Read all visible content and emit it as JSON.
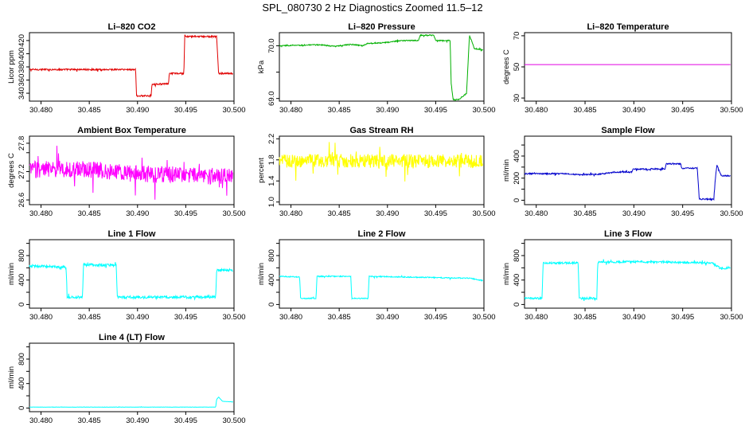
{
  "figure_title": "SPL_080730  2 Hz Diagnostics Zoomed 11.5–12",
  "chart_data": [
    {
      "type": "line",
      "title": "Li–820 CO2",
      "ylabel": "Licor ppm",
      "color": "#e00000",
      "xlim": [
        30.4788,
        30.5
      ],
      "ylim": [
        328,
        432
      ],
      "xticks": [
        30.48,
        30.485,
        30.49,
        30.495,
        30.5
      ],
      "xtick_labels": [
        "30.480",
        "30.485",
        "30.490",
        "30.495",
        "30.500"
      ],
      "yticks": [
        340,
        360,
        380,
        400,
        420
      ],
      "ytick_labels": [
        "340",
        "360",
        "380",
        "400",
        "420"
      ],
      "noise": 1.2,
      "x": [
        30.4788,
        30.4898,
        30.4899,
        30.4914,
        30.4915,
        30.4932,
        30.4933,
        30.4948,
        30.4949,
        30.4982,
        30.4984,
        30.4999
      ],
      "y": [
        376,
        376,
        336,
        336,
        354,
        354,
        370,
        370,
        426,
        426,
        370,
        370
      ]
    },
    {
      "type": "line",
      "title": "Li–820 Pressure",
      "ylabel": "kPa",
      "color": "#00b000",
      "xlim": [
        30.4788,
        30.5
      ],
      "ylim": [
        68.95,
        70.25
      ],
      "xticks": [
        30.48,
        30.485,
        30.49,
        30.495,
        30.5
      ],
      "xtick_labels": [
        "30.480",
        "30.485",
        "30.490",
        "30.495",
        "30.500"
      ],
      "yticks": [
        69.0,
        69.5,
        70.0
      ],
      "ytick_labels": [
        "69.0",
        "",
        "70.0"
      ],
      "noise": 0.01,
      "x": [
        30.4788,
        30.483,
        30.4846,
        30.4862,
        30.4874,
        30.488,
        30.4898,
        30.4914,
        30.4932,
        30.4934,
        30.4942,
        30.4948,
        30.495,
        30.4965,
        30.4966,
        30.4968,
        30.4974,
        30.4982,
        30.4985,
        30.499,
        30.4999
      ],
      "y": [
        70.0,
        70.02,
        69.99,
        70.03,
        70.0,
        70.05,
        70.06,
        70.1,
        70.1,
        70.2,
        70.2,
        70.2,
        70.1,
        70.1,
        69.3,
        68.98,
        68.98,
        69.1,
        70.2,
        69.95,
        69.92
      ]
    },
    {
      "type": "line",
      "title": "Li–820 Temperature",
      "ylabel": "degrees C",
      "color": "#e000e0",
      "xlim": [
        30.4788,
        30.5
      ],
      "ylim": [
        28,
        72
      ],
      "xticks": [
        30.48,
        30.485,
        30.49,
        30.495,
        30.5
      ],
      "xtick_labels": [
        "30.480",
        "30.485",
        "30.490",
        "30.495",
        "30.500"
      ],
      "yticks": [
        30,
        50,
        70
      ],
      "ytick_labels": [
        "30",
        "50",
        "70"
      ],
      "noise": 0,
      "x": [
        30.4788,
        30.4999
      ],
      "y": [
        51.5,
        51.5
      ]
    },
    {
      "type": "line",
      "title": "Ambient Box Temperature",
      "ylabel": "degrees C",
      "color": "#ff00ff",
      "xlim": [
        30.4788,
        30.5
      ],
      "ylim": [
        26.5,
        27.95
      ],
      "xticks": [
        30.48,
        30.485,
        30.49,
        30.495,
        30.5
      ],
      "xtick_labels": [
        "30.480",
        "30.485",
        "30.490",
        "30.495",
        "30.500"
      ],
      "yticks": [
        26.6,
        27.0,
        27.2,
        27.6,
        27.8
      ],
      "ytick_labels": [
        "26.6",
        "",
        "27.2",
        "",
        "27.8"
      ],
      "noise": 0.18,
      "x": [
        30.4788,
        30.485,
        30.49,
        30.4999
      ],
      "y": [
        27.25,
        27.25,
        27.15,
        27.1
      ]
    },
    {
      "type": "line",
      "title": "Gas Stream RH",
      "ylabel": "percent",
      "color": "#ffff00",
      "xlim": [
        30.4788,
        30.5
      ],
      "ylim": [
        0.95,
        2.25
      ],
      "xticks": [
        30.48,
        30.485,
        30.49,
        30.495,
        30.5
      ],
      "xtick_labels": [
        "30.480",
        "30.485",
        "30.490",
        "30.495",
        "30.500"
      ],
      "yticks": [
        1.0,
        1.4,
        1.8,
        2.2
      ],
      "ytick_labels": [
        "1.0",
        "1.4",
        "1.8",
        "2.2"
      ],
      "noise": 0.13,
      "x": [
        30.4788,
        30.4999
      ],
      "y": [
        1.78,
        1.78
      ]
    },
    {
      "type": "line",
      "title": "Sample Flow",
      "ylabel": "ml/min",
      "color": "#0000cc",
      "xlim": [
        30.4788,
        30.5
      ],
      "ylim": [
        -40,
        580
      ],
      "xticks": [
        30.48,
        30.485,
        30.49,
        30.495,
        30.5
      ],
      "xtick_labels": [
        "30.480",
        "30.485",
        "30.490",
        "30.495",
        "30.500"
      ],
      "yticks": [
        0,
        100,
        200,
        300,
        400,
        500
      ],
      "ytick_labels": [
        "0",
        "",
        "200",
        "",
        "400",
        ""
      ],
      "noise": 6,
      "x": [
        30.4788,
        30.483,
        30.4846,
        30.4862,
        30.4874,
        30.488,
        30.4898,
        30.4899,
        30.4932,
        30.4933,
        30.4948,
        30.4949,
        30.4965,
        30.4967,
        30.4982,
        30.4983,
        30.4985,
        30.4988,
        30.499,
        30.4999
      ],
      "y": [
        240,
        240,
        230,
        235,
        245,
        255,
        255,
        280,
        285,
        330,
        330,
        290,
        290,
        10,
        10,
        150,
        320,
        250,
        220,
        220
      ]
    },
    {
      "type": "line",
      "title": "Line 1 Flow",
      "ylabel": "ml/min",
      "color": "#00ffff",
      "xlim": [
        30.4788,
        30.5
      ],
      "ylim": [
        -60,
        1060
      ],
      "xticks": [
        30.48,
        30.485,
        30.49,
        30.495,
        30.5
      ],
      "xtick_labels": [
        "30.480",
        "30.485",
        "30.490",
        "30.495",
        "30.500"
      ],
      "yticks": [
        0,
        200,
        400,
        600,
        800,
        1000
      ],
      "ytick_labels": [
        "0",
        "",
        "400",
        "",
        "800",
        ""
      ],
      "noise": 22,
      "x": [
        30.4788,
        30.4826,
        30.4827,
        30.4843,
        30.4844,
        30.4878,
        30.4879,
        30.4981,
        30.4982,
        30.4999
      ],
      "y": [
        630,
        610,
        120,
        120,
        650,
        640,
        120,
        120,
        560,
        560
      ]
    },
    {
      "type": "line",
      "title": "Line 2 Flow",
      "ylabel": "ml/min",
      "color": "#00ffff",
      "xlim": [
        30.4788,
        30.5
      ],
      "ylim": [
        -60,
        1060
      ],
      "xticks": [
        30.48,
        30.485,
        30.49,
        30.495,
        30.5
      ],
      "xtick_labels": [
        "30.480",
        "30.485",
        "30.490",
        "30.495",
        "30.500"
      ],
      "yticks": [
        0,
        200,
        400,
        600,
        800,
        1000
      ],
      "ytick_labels": [
        "0",
        "",
        "400",
        "",
        "800",
        ""
      ],
      "noise": 8,
      "x": [
        30.4788,
        30.4809,
        30.481,
        30.4826,
        30.4827,
        30.4862,
        30.4863,
        30.488,
        30.4881,
        30.4985,
        30.4999
      ],
      "y": [
        460,
        450,
        100,
        100,
        460,
        460,
        100,
        100,
        460,
        430,
        390
      ]
    },
    {
      "type": "line",
      "title": "Line 3 Flow",
      "ylabel": "ml/min",
      "color": "#00ffff",
      "xlim": [
        30.4788,
        30.5
      ],
      "ylim": [
        -60,
        1060
      ],
      "xticks": [
        30.48,
        30.485,
        30.49,
        30.495,
        30.5
      ],
      "xtick_labels": [
        "30.480",
        "30.485",
        "30.490",
        "30.495",
        "30.500"
      ],
      "yticks": [
        0,
        200,
        400,
        600,
        800,
        1000
      ],
      "ytick_labels": [
        "0",
        "",
        "400",
        "",
        "800",
        ""
      ],
      "noise": 16,
      "x": [
        30.4788,
        30.4806,
        30.4807,
        30.4843,
        30.4844,
        30.4862,
        30.4863,
        30.49,
        30.498,
        30.499,
        30.4999
      ],
      "y": [
        100,
        100,
        680,
        680,
        100,
        100,
        690,
        700,
        680,
        580,
        610
      ]
    },
    {
      "type": "line",
      "title": "Line 4 (LT) Flow",
      "ylabel": "ml/min",
      "color": "#00ffff",
      "xlim": [
        30.4788,
        30.5
      ],
      "ylim": [
        -60,
        1060
      ],
      "xticks": [
        30.48,
        30.485,
        30.49,
        30.495,
        30.5
      ],
      "xtick_labels": [
        "30.480",
        "30.485",
        "30.490",
        "30.495",
        "30.500"
      ],
      "yticks": [
        0,
        200,
        400,
        600,
        800,
        1000
      ],
      "ytick_labels": [
        "0",
        "",
        "400",
        "",
        "800",
        ""
      ],
      "noise": 2,
      "x": [
        30.4788,
        30.4981,
        30.4982,
        30.4984,
        30.4988,
        30.4999
      ],
      "y": [
        15,
        15,
        140,
        180,
        110,
        100
      ]
    }
  ]
}
